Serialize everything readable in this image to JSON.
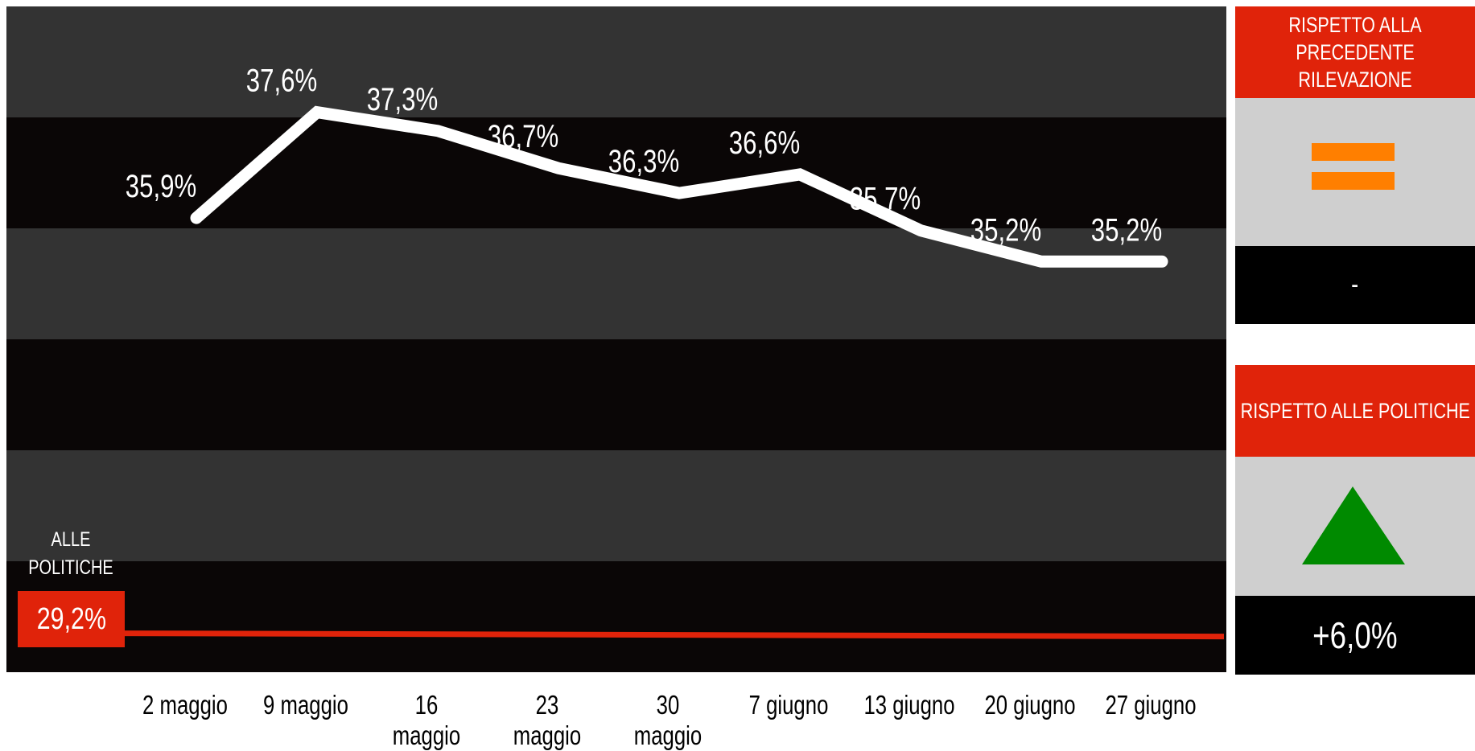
{
  "chart_data": {
    "type": "line",
    "categories": [
      "2 maggio",
      "9 maggio",
      "16 maggio",
      "23 maggio",
      "30 maggio",
      "7 giugno",
      "13 giugno",
      "20 giugno",
      "27 giugno"
    ],
    "values": [
      35.9,
      37.6,
      37.3,
      36.7,
      36.3,
      36.6,
      35.7,
      35.2,
      35.2
    ],
    "data_labels": [
      "35,9%",
      "37,6%",
      "37,3%",
      "36,7%",
      "36,3%",
      "36,6%",
      "35,7%",
      "35,2%",
      "35,2%"
    ],
    "reference_line": {
      "value": 29.2,
      "label": "29,2%",
      "caption": "ALLE POLITICHE"
    },
    "ylim": [
      28.6,
      39.3
    ],
    "grid": "alternating horizontal bands",
    "colors": {
      "line": "#ffffff",
      "reference": "#e0230a",
      "band_dark": "#0a0606",
      "band_light": "#333333"
    }
  },
  "panels": [
    {
      "heading": "RISPETTO ALLA PRECEDENTE RILEVAZIONE",
      "icon": "equals-icon",
      "icon_color": "#ff7f00",
      "value": "-"
    },
    {
      "heading": "RISPETTO ALLE POLITICHE",
      "icon": "triangle-up-icon",
      "icon_color": "#008a00",
      "value": "+6,0%"
    }
  ]
}
